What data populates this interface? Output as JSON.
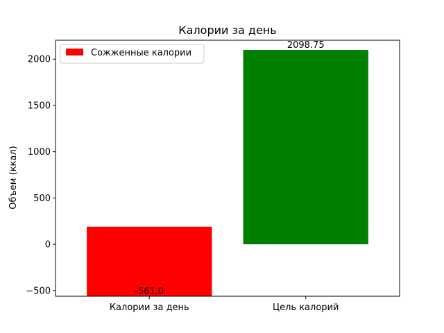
{
  "chart_data": {
    "type": "bar",
    "title": "Калории за день",
    "xlabel": "",
    "ylabel": "Объем (ккал)",
    "categories": [
      "Калории за день",
      "Цель калорий"
    ],
    "bars": [
      {
        "category": "Калории за день",
        "bottom": 190,
        "top": -561.0,
        "label": "-561.0",
        "color": "#ff0000"
      },
      {
        "category": "Цель калорий",
        "bottom": 0,
        "top": 2098.75,
        "label": "2098.75",
        "color": "#008000"
      }
    ],
    "ylim": [
      -561,
      2204
    ],
    "yticks": [
      -500,
      0,
      500,
      1000,
      1500,
      2000
    ],
    "ytick_labels": [
      "−500",
      "0",
      "500",
      "1000",
      "1500",
      "2000"
    ],
    "legend": {
      "placement": "upper-left",
      "entries": [
        {
          "label": "Сожженные калории",
          "color": "#ff0000"
        }
      ]
    },
    "grid": false
  }
}
